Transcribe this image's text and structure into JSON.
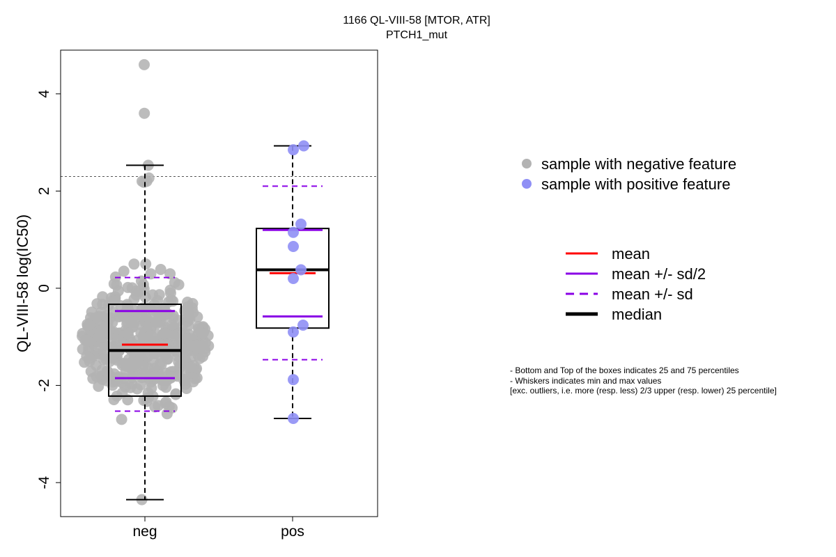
{
  "chart_data": {
    "type": "scatter",
    "title": "1166 QL-VIII-58 [MTOR, ATR]",
    "subtitle": "PTCH1_mut",
    "ylabel": "QL-VIII-58 log(IC50)",
    "xlabel": "",
    "categories": [
      "neg",
      "pos"
    ],
    "ylim": [
      -4.7,
      4.9
    ],
    "yticks": [
      -4,
      -2,
      0,
      2,
      4
    ],
    "threshold_line": 2.3,
    "colors": {
      "neg_points": "#b3b3b3",
      "pos_points": "#8f8ff5",
      "mean": "#ff0000",
      "sd": "#8a00e6",
      "median": "#000000"
    },
    "groups": [
      {
        "name": "neg",
        "box": {
          "q1": -2.22,
          "median": -1.28,
          "q3": -0.33,
          "whisker_low": -4.35,
          "whisker_high": 2.53
        },
        "mean": -1.16,
        "mean_minus_half_sd": -1.85,
        "mean_plus_half_sd": -0.47,
        "mean_minus_sd": -2.53,
        "mean_plus_sd": 0.22,
        "n_points": 460,
        "outliers": [
          4.6,
          3.6
        ],
        "top_points": [
          2.53,
          2.27,
          2.2,
          2.2,
          2.18
        ]
      },
      {
        "name": "pos",
        "box": {
          "q1": -0.82,
          "median": 0.38,
          "q3": 1.23,
          "whisker_low": -2.68,
          "whisker_high": 2.93
        },
        "mean": 0.31,
        "mean_minus_half_sd": -0.58,
        "mean_plus_half_sd": 1.2,
        "mean_minus_sd": -1.47,
        "mean_plus_sd": 2.1,
        "points": [
          2.93,
          2.85,
          1.32,
          1.15,
          0.86,
          0.38,
          0.2,
          -0.76,
          -0.9,
          -1.88,
          -2.68
        ]
      }
    ],
    "legend_points": [
      {
        "label": "sample with negative feature",
        "color": "#b3b3b3"
      },
      {
        "label": "sample with positive feature",
        "color": "#8f8ff5"
      }
    ],
    "legend_lines": [
      {
        "label": "mean",
        "color": "#ff0000",
        "style": "solid"
      },
      {
        "label": "mean +/- sd/2",
        "color": "#8a00e6",
        "style": "solid"
      },
      {
        "label": "mean +/- sd",
        "color": "#8a00e6",
        "style": "dashed"
      },
      {
        "label": "median",
        "color": "#000000",
        "style": "thick"
      }
    ],
    "notes": [
      "- Bottom and Top of the boxes indicates 25 and 75 percentiles",
      "- Whiskers indicates min and max values",
      "[exc. outliers, i.e. more (resp. less) 2/3 upper (resp. lower) 25 percentile]"
    ]
  }
}
